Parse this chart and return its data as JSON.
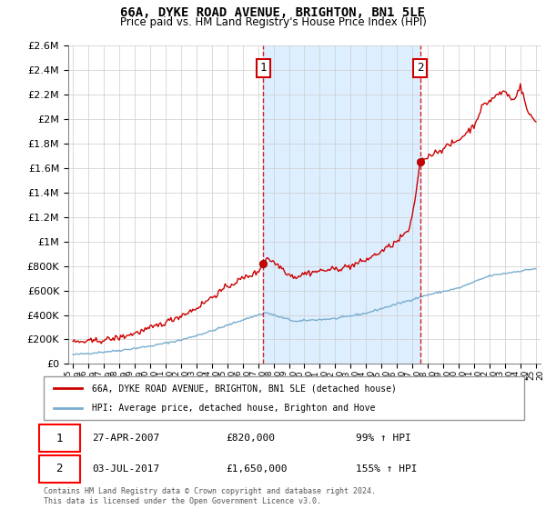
{
  "title": "66A, DYKE ROAD AVENUE, BRIGHTON, BN1 5LE",
  "subtitle": "Price paid vs. HM Land Registry's House Price Index (HPI)",
  "legend_property": "66A, DYKE ROAD AVENUE, BRIGHTON, BN1 5LE (detached house)",
  "legend_hpi": "HPI: Average price, detached house, Brighton and Hove",
  "point1_date": "27-APR-2007",
  "point1_price": "£820,000",
  "point1_pct": "99% ↑ HPI",
  "point2_date": "03-JUL-2017",
  "point2_price": "£1,650,000",
  "point2_pct": "155% ↑ HPI",
  "footnote": "Contains HM Land Registry data © Crown copyright and database right 2024.\nThis data is licensed under the Open Government Licence v3.0.",
  "property_color": "#cc0000",
  "hpi_color": "#7aadcf",
  "shade_color": "#ddeeff",
  "vline_color": "#cc0000",
  "background_color": "#ffffff",
  "grid_color": "#cccccc",
  "ylim": [
    0,
    2600000
  ],
  "yticks": [
    0,
    200000,
    400000,
    600000,
    800000,
    1000000,
    1200000,
    1400000,
    1600000,
    1800000,
    2000000,
    2200000,
    2400000,
    2600000
  ],
  "sale1_year": 2007.32,
  "sale1_price": 820000,
  "sale2_year": 2017.5,
  "sale2_price": 1650000,
  "xlim_left": 1994.7,
  "xlim_right": 2025.3
}
